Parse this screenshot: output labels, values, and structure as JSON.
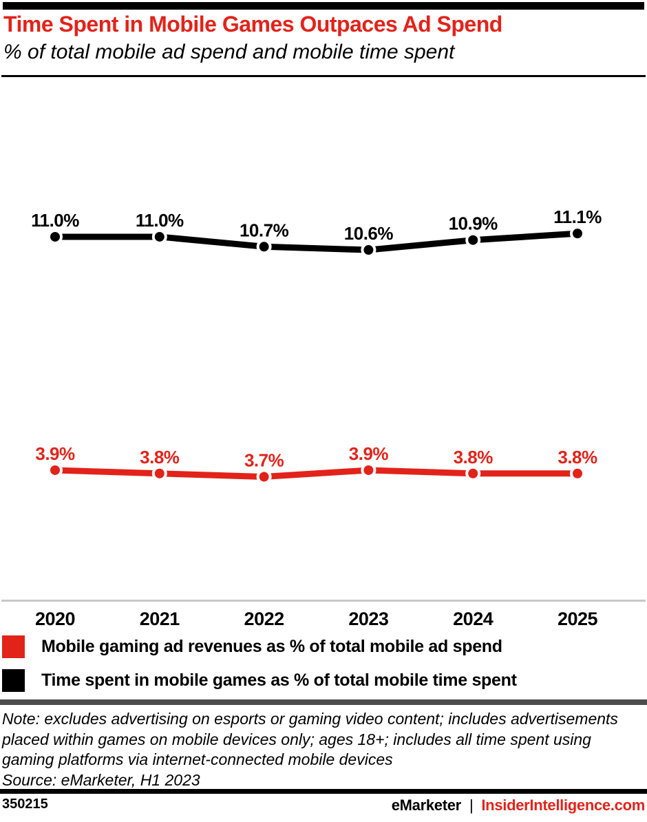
{
  "header": {
    "title": "Time Spent in Mobile Games Outpaces Ad Spend",
    "subtitle": "% of total mobile ad spend and mobile time spent"
  },
  "colors": {
    "red": "#e2231a",
    "black": "#000000",
    "axis_gray": "#c8c8c8",
    "divider_gray": "#4d4d4d"
  },
  "chart_data": {
    "type": "line",
    "title": "Time Spent in Mobile Games Outpaces Ad Spend",
    "subtitle": "% of total mobile ad spend and mobile time spent",
    "categories": [
      "2020",
      "2021",
      "2022",
      "2023",
      "2024",
      "2025"
    ],
    "series": [
      {
        "name": "Time spent in mobile games as % of total mobile time spent",
        "color": "#000000",
        "values": [
          11.0,
          11.0,
          10.7,
          10.6,
          10.9,
          11.1
        ],
        "labels": [
          "11.0%",
          "11.0%",
          "10.7%",
          "10.6%",
          "10.9%",
          "11.1%"
        ]
      },
      {
        "name": "Mobile gaming ad revenues as % of total mobile ad spend",
        "color": "#e2231a",
        "values": [
          3.9,
          3.8,
          3.7,
          3.9,
          3.8,
          3.8
        ],
        "labels": [
          "3.9%",
          "3.8%",
          "3.7%",
          "3.9%",
          "3.8%",
          "3.8%"
        ]
      }
    ],
    "ylim": [
      0,
      15
    ],
    "grid": false,
    "data_labels": true,
    "legend_position": "bottom"
  },
  "legend": {
    "items": [
      {
        "label": "Mobile gaming ad revenues as % of total mobile ad spend",
        "color": "#e2231a"
      },
      {
        "label": "Time spent in mobile games as % of total mobile time spent",
        "color": "#000000"
      }
    ]
  },
  "note": "Note: excludes advertising on esports or gaming video content; includes advertisements placed within games on mobile devices only; ages 18+; includes all time spent using gaming platforms via internet-connected mobile devices",
  "source": "Source: eMarketer, H1 2023",
  "footer": {
    "chart_id": "350215",
    "brand_left": "eMarketer",
    "separator": "|",
    "brand_right": "InsiderIntelligence.com"
  }
}
